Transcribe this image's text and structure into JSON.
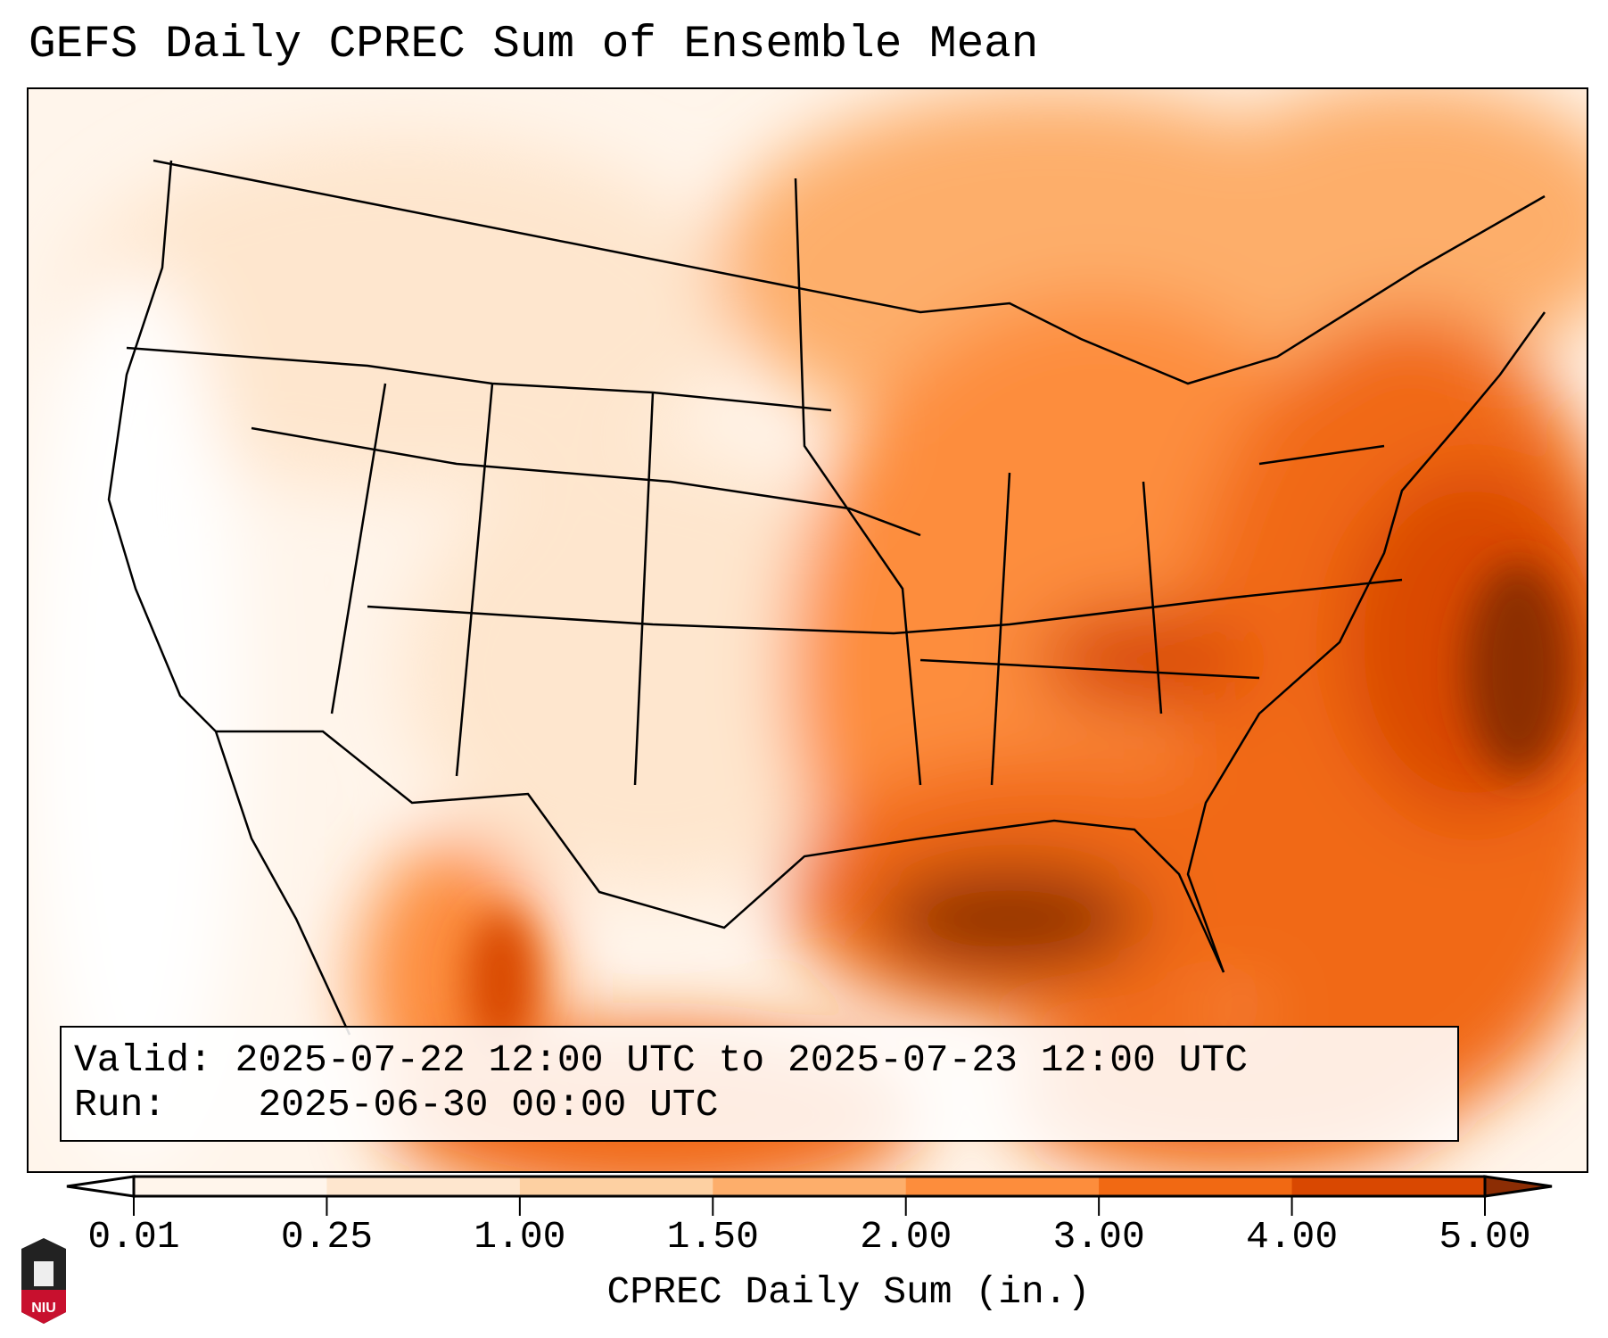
{
  "title": "GEFS Daily CPREC Sum of Ensemble Mean",
  "info": {
    "valid_label": "Valid:",
    "valid_value": "2025-07-22 12:00 UTC to 2025-07-23 12:00 UTC",
    "run_label": "Run:",
    "run_value": "2025-06-30 00:00 UTC"
  },
  "colorbar": {
    "label": "CPREC Daily Sum (in.)",
    "ticks": [
      "0.01",
      "0.25",
      "1.00",
      "1.50",
      "2.00",
      "3.00",
      "4.00",
      "5.00"
    ],
    "colors": [
      "#fff5eb",
      "#fee6ce",
      "#fdd0a2",
      "#fdae6b",
      "#fd8d3c",
      "#f16913",
      "#d94801"
    ],
    "under_color": "#ffffff",
    "over_color": "#8c2d04"
  },
  "logo": {
    "text": "NIU"
  }
}
